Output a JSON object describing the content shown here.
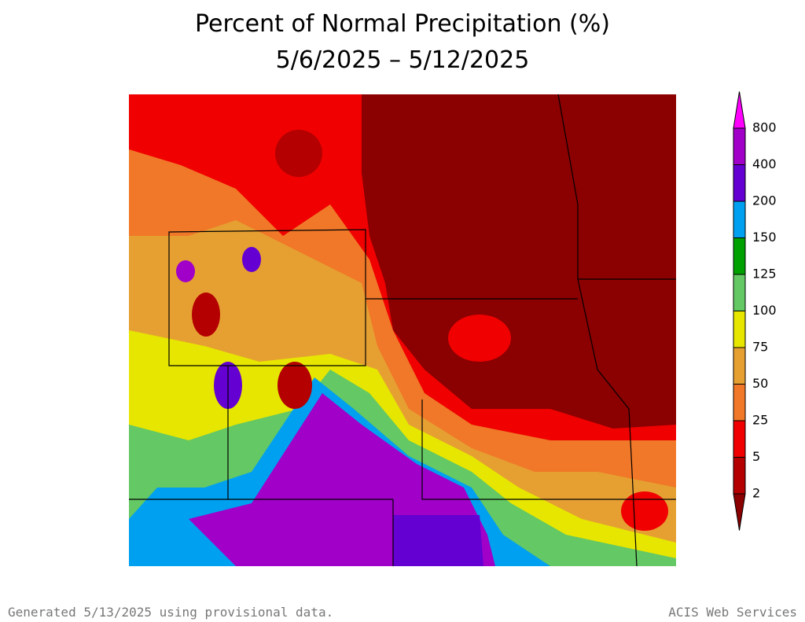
{
  "title": "Percent of Normal Precipitation (%)",
  "subtitle": "5/6/2025 – 5/12/2025",
  "legend": {
    "ticks": [
      2,
      5,
      25,
      50,
      75,
      100,
      125,
      150,
      200,
      400,
      800
    ],
    "colors": [
      "#8b0000",
      "#b40000",
      "#f00000",
      "#f07828",
      "#e6a032",
      "#e6e600",
      "#64c864",
      "#00a000",
      "#00a0f0",
      "#6400d2",
      "#a000c8",
      "#ff00ff"
    ]
  },
  "footer": {
    "left": "Generated 5/13/2025 using provisional data.",
    "right": "ACIS Web Services"
  }
}
